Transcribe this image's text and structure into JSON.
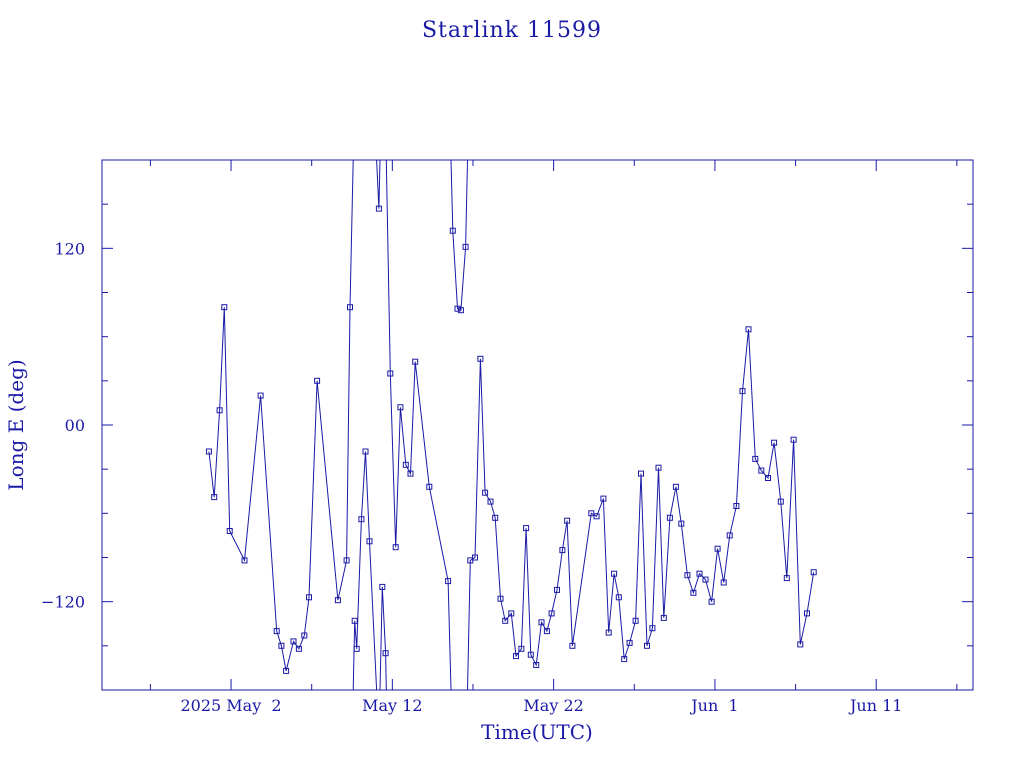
{
  "chart_data": {
    "type": "scatter",
    "title": "Starlink 11599",
    "xlabel": "Time(UTC)",
    "ylabel": "Long E (deg)",
    "x_unit": "days",
    "xlim": [
      "2025-04-24",
      "2025-06-17"
    ],
    "ylim": [
      -180,
      180
    ],
    "x_ticks": [
      {
        "value": "2025-05-02",
        "label": "2025 May  2"
      },
      {
        "value": "2025-05-12",
        "label": "May 12"
      },
      {
        "value": "2025-05-22",
        "label": "May 22"
      },
      {
        "value": "2025-06-01",
        "label": "Jun  1"
      },
      {
        "value": "2025-06-11",
        "label": "Jun 11"
      }
    ],
    "y_ticks": [
      {
        "value": 120,
        "label": "120"
      },
      {
        "value": 0,
        "label": "00"
      },
      {
        "value": -120,
        "label": "−120"
      }
    ],
    "grid": false,
    "series_color": "#1a1aa6",
    "series": [
      {
        "x": [
          "2025-04-30T15:00",
          "2025-04-30T23:00",
          "2025-05-01T07:00",
          "2025-05-01T14:00",
          "2025-05-01T22:00",
          "2025-05-02T20:00",
          "2025-05-03T20:00",
          "2025-05-04T20:00",
          "2025-05-05T03:00",
          "2025-05-05T10:00",
          "2025-05-05T21:00",
          "2025-05-06T05:00",
          "2025-05-06T13:00",
          "2025-05-06T20:00",
          "2025-05-07T08:00",
          "2025-05-08T15:00",
          "2025-05-09T04:00",
          "2025-05-09T09:00",
          "2025-05-09T16:00",
          "2025-05-09T19:00",
          "2025-05-10T02:00",
          "2025-05-10T08:00",
          "2025-05-10T14:00",
          "2025-05-11T04:00",
          "2025-05-11T09:00",
          "2025-05-11T14:00",
          "2025-05-11T21:00",
          "2025-05-12T05:00",
          "2025-05-12T12:00",
          "2025-05-12T20:00",
          "2025-05-13T03:00",
          "2025-05-13T10:00",
          "2025-05-14T07:00",
          "2025-05-15T11:00",
          "2025-05-15T18:00",
          "2025-05-16T01:00",
          "2025-05-16T06:00",
          "2025-05-16T13:00",
          "2025-05-16T20:00",
          "2025-05-17T03:00",
          "2025-05-17T11:00",
          "2025-05-17T18:00",
          "2025-05-18T02:00",
          "2025-05-18T09:00",
          "2025-05-18T17:00",
          "2025-05-19T00:00",
          "2025-05-19T09:00",
          "2025-05-19T16:00",
          "2025-05-20T00:00",
          "2025-05-20T07:00",
          "2025-05-20T14:00",
          "2025-05-20T22:00",
          "2025-05-21T06:00",
          "2025-05-21T14:00",
          "2025-05-21T21:00",
          "2025-05-22T05:00",
          "2025-05-22T13:00",
          "2025-05-22T20:00",
          "2025-05-23T04:00",
          "2025-05-24T08:00",
          "2025-05-24T16:00",
          "2025-05-25T02:00",
          "2025-05-25T10:00",
          "2025-05-25T18:00",
          "2025-05-26T01:00",
          "2025-05-26T09:00",
          "2025-05-26T17:00",
          "2025-05-27T02:00",
          "2025-05-27T10:00",
          "2025-05-27T19:00",
          "2025-05-28T03:00",
          "2025-05-28T12:00",
          "2025-05-28T20:00",
          "2025-05-29T05:00",
          "2025-05-29T14:00",
          "2025-05-29T22:00",
          "2025-05-30T07:00",
          "2025-05-30T16:00",
          "2025-05-31T01:00",
          "2025-05-31T10:00",
          "2025-05-31T19:00",
          "2025-06-01T04:00",
          "2025-06-01T13:00",
          "2025-06-01T22:00",
          "2025-06-02T08:00",
          "2025-06-02T17:00",
          "2025-06-03T02:00",
          "2025-06-03T12:00",
          "2025-06-03T21:00",
          "2025-06-04T07:00",
          "2025-06-04T16:00",
          "2025-06-05T02:00",
          "2025-06-05T11:00",
          "2025-06-05T21:00",
          "2025-06-06T07:00",
          "2025-06-06T17:00",
          "2025-06-07T03:00"
        ],
        "y": [
          -18,
          -49,
          10,
          80,
          -72,
          -92,
          20,
          -140,
          -150,
          -167,
          -147,
          -152,
          -143,
          -117,
          30,
          -119,
          -92,
          80,
          -133,
          -152,
          -64,
          -18,
          -79,
          147,
          -110,
          -155,
          35,
          -83,
          12,
          -27,
          -33,
          43,
          -42,
          -106,
          132,
          79,
          78,
          121,
          -92,
          -90,
          45,
          -46,
          -52,
          -63,
          -118,
          -133,
          -128,
          -157,
          -152,
          -70,
          -156,
          -163,
          -134,
          -140,
          -128,
          -112,
          -85,
          -65,
          -150,
          -60,
          -62,
          -50,
          -141,
          -101,
          -117,
          -159,
          -148,
          -133,
          -33,
          -150,
          -138,
          -29,
          -131,
          -63,
          -42,
          -67,
          -102,
          -114,
          -101,
          -105,
          -120,
          -84,
          -107,
          -75,
          -55,
          23,
          65,
          -23,
          -31,
          -36,
          -12,
          -52,
          -104,
          -10,
          -149,
          -128,
          -100
        ]
      }
    ]
  }
}
